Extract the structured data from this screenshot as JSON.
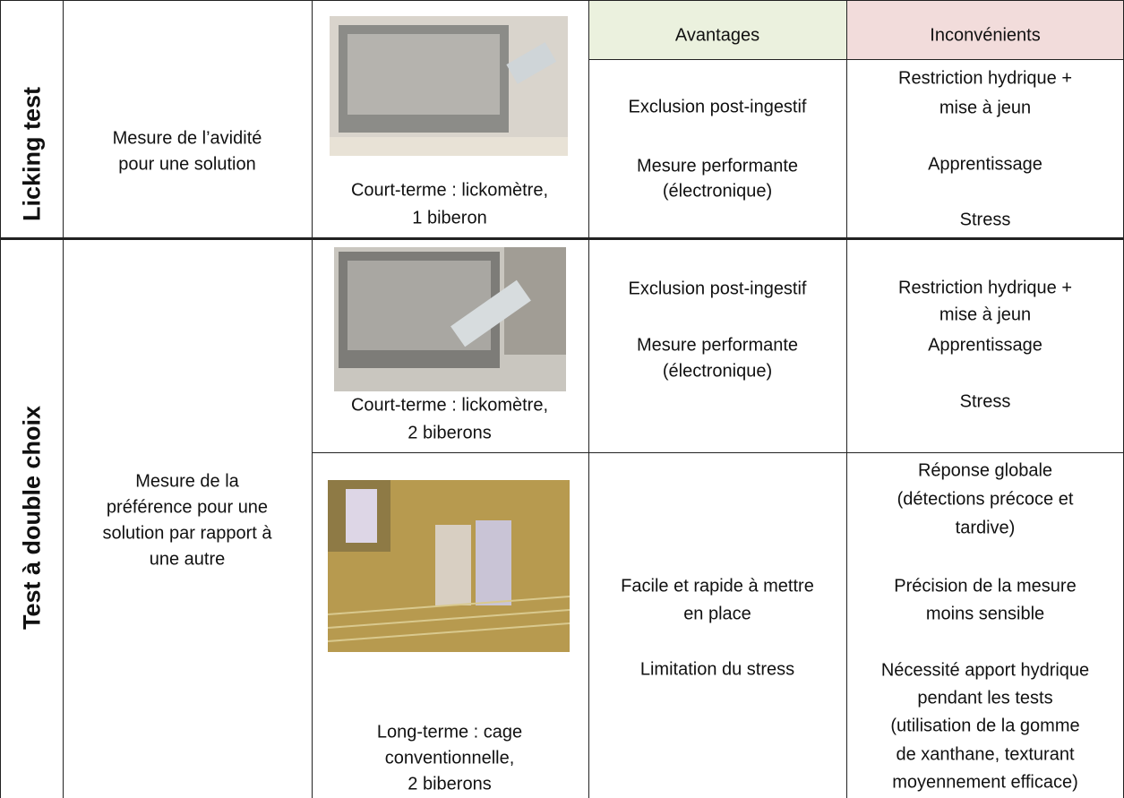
{
  "header": {
    "advantages": "Avantages",
    "disadvantages": "Inconvénients"
  },
  "groups": [
    {
      "label": "Licking test",
      "description": [
        "Mesure de l’avidité",
        "pour une solution"
      ],
      "methods": [
        {
          "caption": [
            "Court-terme : lickomètre,",
            "1 biberon"
          ],
          "advantages": [
            [
              "Exclusion post-ingestif"
            ],
            [
              "Mesure performante",
              "(électronique)"
            ]
          ],
          "disadvantages": [
            [
              "Restriction hydrique +",
              "mise à jeun"
            ],
            [
              "Apprentissage"
            ],
            [
              "Stress"
            ]
          ]
        }
      ]
    },
    {
      "label": "Test à double choix",
      "description": [
        "Mesure de la",
        "préférence pour une",
        "solution par rapport à",
        "une autre"
      ],
      "methods": [
        {
          "caption": [
            "Court-terme : lickomètre,",
            "2 biberons"
          ],
          "advantages": [
            [
              "Exclusion post-ingestif"
            ],
            [
              "Mesure performante",
              "(électronique)"
            ]
          ],
          "disadvantages": [
            [
              "Restriction hydrique +",
              "mise à jeun"
            ],
            [
              "Apprentissage"
            ],
            [
              "Stress"
            ]
          ]
        },
        {
          "caption": [
            "Long-terme : cage",
            "conventionnelle,",
            "2 biberons"
          ],
          "advantages": [
            [
              "Facile et rapide à mettre",
              "en place"
            ],
            [
              "Limitation du stress"
            ]
          ],
          "disadvantages": [
            [
              "Réponse globale",
              "(détections précoce et",
              "tardive)"
            ],
            [
              "Précision de la mesure",
              "moins sensible"
            ],
            [
              "Nécessité apport hydrique",
              "pendant les tests",
              "(utilisation de la gomme",
              "de xanthane, texturant",
              "moyennement efficace)"
            ]
          ]
        }
      ]
    }
  ]
}
